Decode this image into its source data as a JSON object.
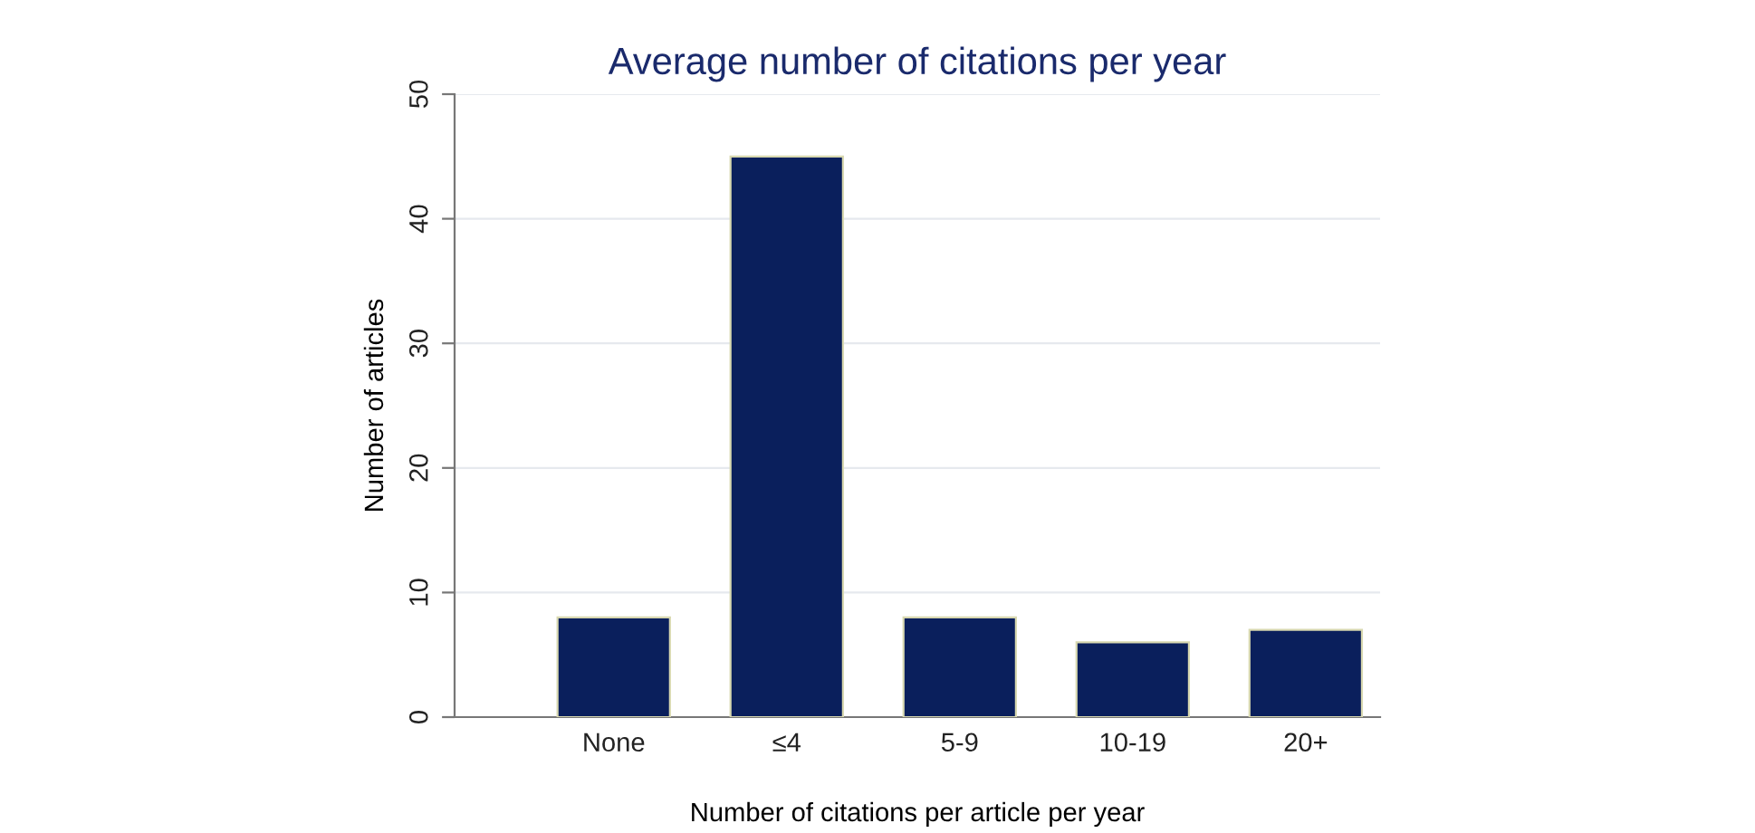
{
  "chart_data": {
    "type": "bar",
    "title": "Average number of citations per year",
    "xlabel": "Number of citations per article per year",
    "ylabel": "Number of articles",
    "categories": [
      "None",
      "≤4",
      "5-9",
      "10-19",
      "20+"
    ],
    "values": [
      8,
      45,
      8,
      6,
      7
    ],
    "color": "#0a1f5c",
    "ylim": [
      0,
      50
    ],
    "yticks": [
      0,
      10,
      20,
      30,
      40,
      50
    ],
    "grid": "y",
    "legend": false
  }
}
